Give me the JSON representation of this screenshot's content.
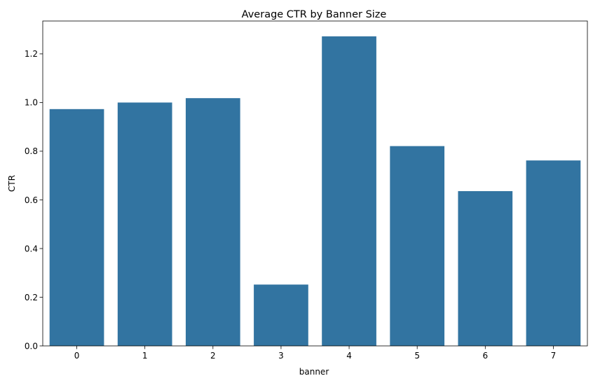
{
  "chart_data": {
    "type": "bar",
    "title": "Average CTR by Banner Size",
    "xlabel": "banner",
    "ylabel": "CTR",
    "categories": [
      "0",
      "1",
      "2",
      "3",
      "4",
      "5",
      "6",
      "7"
    ],
    "values": [
      0.973,
      1.0,
      1.018,
      0.252,
      1.272,
      0.821,
      0.636,
      0.762
    ],
    "ylim": [
      0,
      1.335
    ],
    "yticks": [
      "0.0",
      "0.2",
      "0.4",
      "0.6",
      "0.8",
      "1.0",
      "1.2"
    ],
    "grid": false,
    "legend": "none",
    "bar_color": "#3274a1"
  }
}
